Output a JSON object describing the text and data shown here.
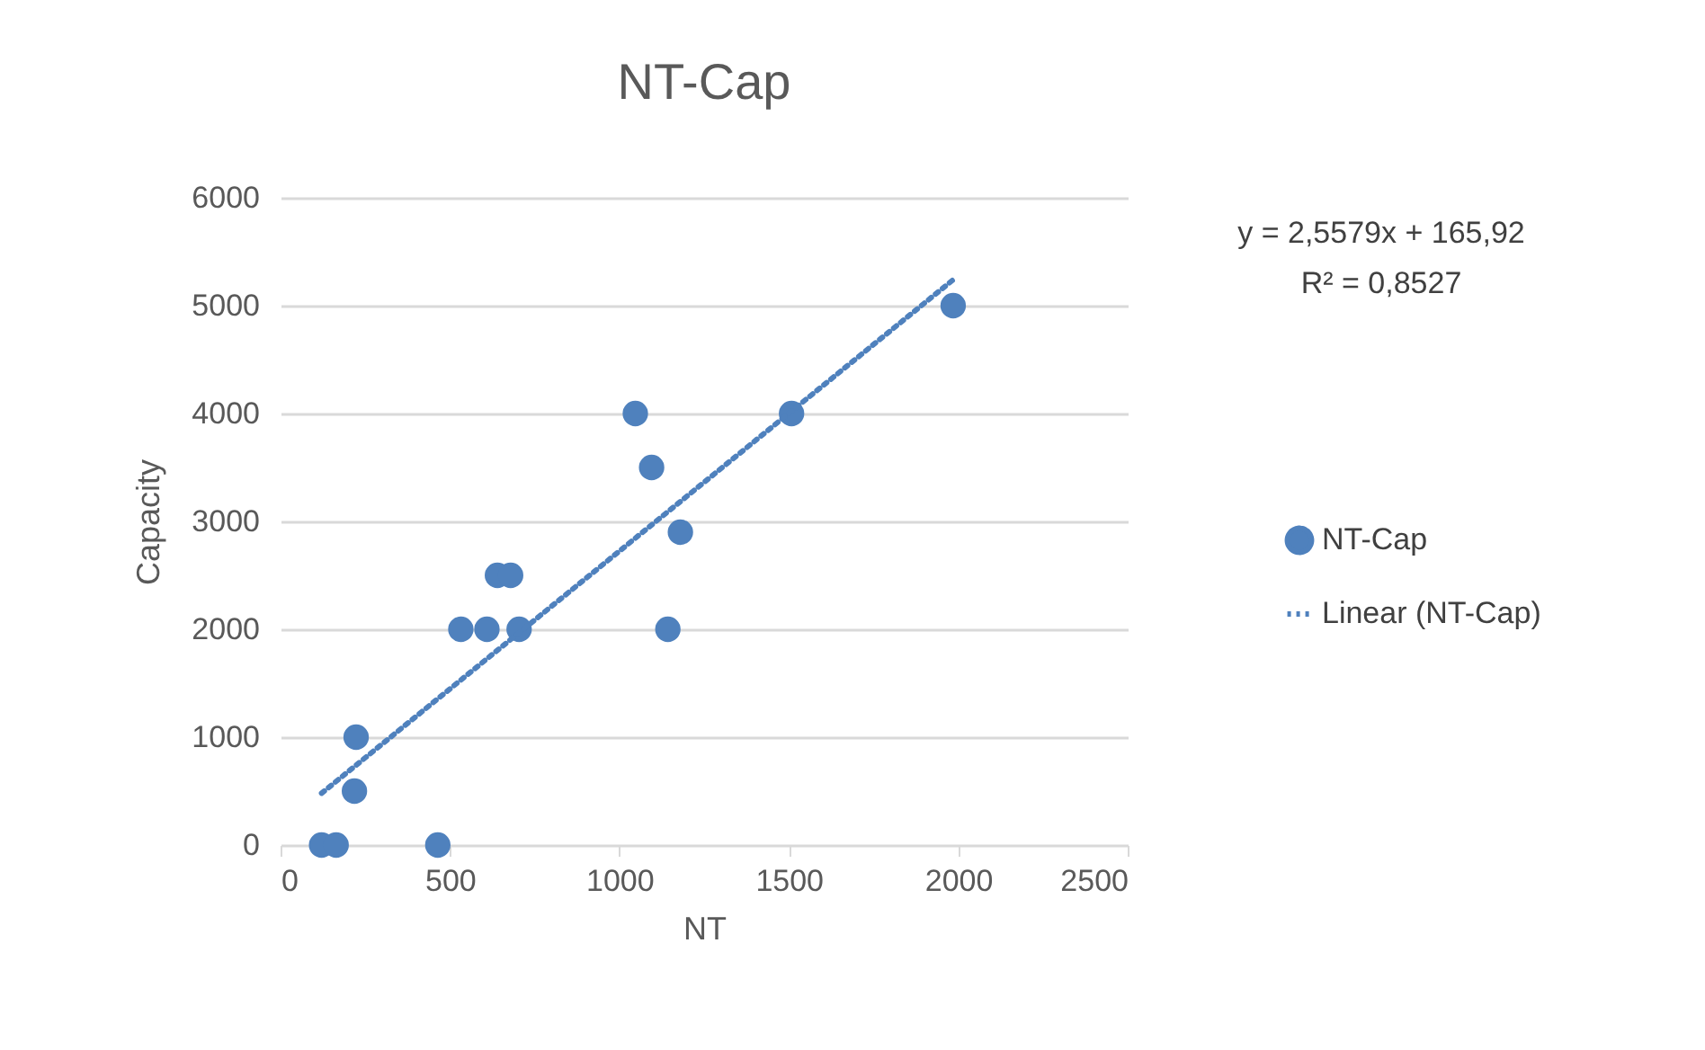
{
  "chart_data": {
    "type": "scatter",
    "title": "NT-Cap",
    "xlabel": "NT",
    "ylabel": "Capacity",
    "annotations": [
      "y = 2,5579x + 165,92",
      "R² = 0,8527"
    ],
    "series": [
      {
        "name": "NT-Cap",
        "color": "#4f81bd",
        "marker": "circle",
        "x": [
          121,
          164,
          464,
          218,
          223,
          532,
          609,
          704,
          1143,
          640,
          679,
          1047,
          1095,
          1180,
          1508,
          1985
        ],
        "values": [
          0,
          0,
          0,
          500,
          1000,
          2000,
          2000,
          2000,
          2000,
          2500,
          2500,
          4000,
          3500,
          2900,
          4000,
          5000
        ]
      },
      {
        "name": "Linear (NT-Cap)",
        "type": "line",
        "color": "#4f81bd",
        "line_style": "dotted",
        "marker": "none",
        "x": [
          121,
          1985
        ],
        "values": [
          480,
          5240
        ]
      }
    ],
    "xlim": [
      0,
      2500
    ],
    "xticks": [
      0,
      500,
      1000,
      1500,
      2000,
      2500
    ],
    "ylim": [
      0,
      6000
    ],
    "yticks": [
      0,
      1000,
      2000,
      3000,
      4000,
      5000,
      6000
    ],
    "grid": "y",
    "legend": "right"
  }
}
